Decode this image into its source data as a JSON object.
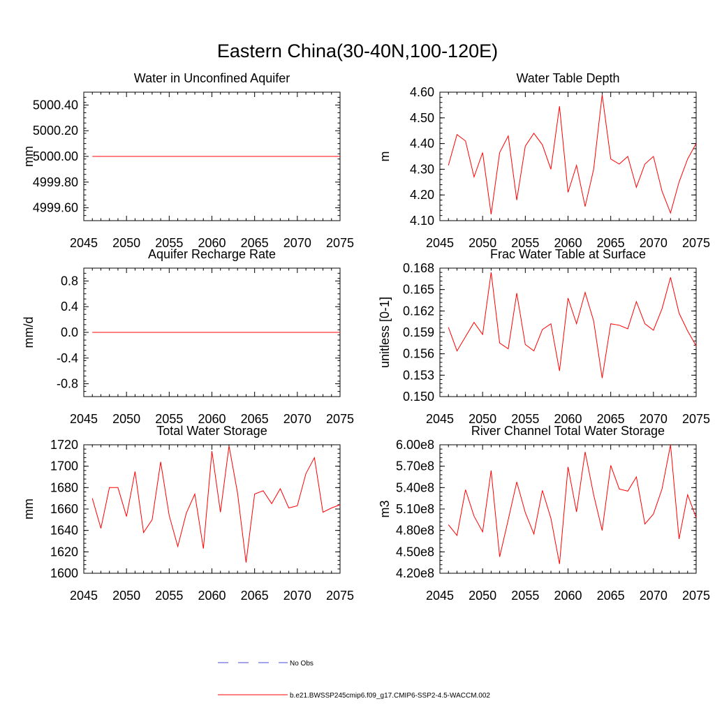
{
  "figure_title": "Eastern China(30-40N,100-120E)",
  "colors": {
    "model": "#ff0000",
    "obs": "#4a4ad8",
    "axis": "#000000"
  },
  "legend": {
    "obs_label": "No Obs",
    "model_label": "b.e21.BWSSP245cmip6.f09_g17.CMIP6-SSP2-4.5-WACCM.002"
  },
  "chart_data": [
    {
      "type": "line",
      "title": "Water in Unconfined Aquifer",
      "ylabel": "mm",
      "xlim": [
        2045,
        2075
      ],
      "ylim": [
        4999.5,
        5000.5
      ],
      "xticks": [
        2045,
        2050,
        2055,
        2060,
        2065,
        2070,
        2075
      ],
      "yticks": [
        4999.6,
        4999.8,
        5000.0,
        5000.2,
        5000.4
      ],
      "ytick_labels": [
        "4999.60",
        "4999.80",
        "5000.00",
        "5000.20",
        "5000.40"
      ],
      "ytick_minor": 0.04,
      "x": [
        2046,
        2075
      ],
      "series": [
        {
          "name": "b.e21.BWSSP245cmip6.f09_g17.CMIP6-SSP2-4.5-WACCM.002",
          "values": [
            5000.0,
            5000.0
          ]
        }
      ]
    },
    {
      "type": "line",
      "title": "Water Table Depth",
      "ylabel": "m",
      "xlim": [
        2045,
        2075
      ],
      "ylim": [
        4.1,
        4.6
      ],
      "xticks": [
        2045,
        2050,
        2055,
        2060,
        2065,
        2070,
        2075
      ],
      "yticks": [
        4.1,
        4.2,
        4.3,
        4.4,
        4.5,
        4.6
      ],
      "ytick_labels": [
        "4.10",
        "4.20",
        "4.30",
        "4.40",
        "4.50",
        "4.60"
      ],
      "ytick_minor": 0.02,
      "x": [
        2046,
        2047,
        2048,
        2049,
        2050,
        2051,
        2052,
        2053,
        2054,
        2055,
        2056,
        2057,
        2058,
        2059,
        2060,
        2061,
        2062,
        2063,
        2064,
        2065,
        2066,
        2067,
        2068,
        2069,
        2070,
        2071,
        2072,
        2073,
        2074,
        2075
      ],
      "series": [
        {
          "name": "b.e21.BWSSP245cmip6.f09_g17.CMIP6-SSP2-4.5-WACCM.002",
          "values": [
            4.315,
            4.435,
            4.41,
            4.27,
            4.365,
            4.125,
            4.365,
            4.43,
            4.18,
            4.39,
            4.44,
            4.395,
            4.3,
            4.545,
            4.21,
            4.315,
            4.155,
            4.3,
            4.59,
            4.34,
            4.32,
            4.35,
            4.23,
            4.32,
            4.35,
            4.215,
            4.13,
            4.25,
            4.34,
            4.4
          ]
        }
      ]
    },
    {
      "type": "line",
      "title": "Aquifer Recharge Rate",
      "ylabel": "mm/d",
      "xlim": [
        2045,
        2075
      ],
      "ylim": [
        -1.0,
        1.0
      ],
      "xticks": [
        2045,
        2050,
        2055,
        2060,
        2065,
        2070,
        2075
      ],
      "yticks": [
        -0.8,
        -0.4,
        0.0,
        0.4,
        0.8
      ],
      "ytick_labels": [
        "-0.8",
        "-0.4",
        "0.0",
        "0.4",
        "0.8"
      ],
      "ytick_minor": 0.08,
      "x": [
        2046,
        2075
      ],
      "series": [
        {
          "name": "b.e21.BWSSP245cmip6.f09_g17.CMIP6-SSP2-4.5-WACCM.002",
          "values": [
            0.0,
            0.0
          ]
        }
      ]
    },
    {
      "type": "line",
      "title": "Frac Water Table at Surface",
      "ylabel": "unitless [0-1]",
      "xlim": [
        2045,
        2075
      ],
      "ylim": [
        0.15,
        0.168
      ],
      "xticks": [
        2045,
        2050,
        2055,
        2060,
        2065,
        2070,
        2075
      ],
      "yticks": [
        0.15,
        0.153,
        0.156,
        0.159,
        0.162,
        0.165,
        0.168
      ],
      "ytick_labels": [
        "0.150",
        "0.153",
        "0.156",
        "0.159",
        "0.162",
        "0.165",
        "0.168"
      ],
      "ytick_minor": 0.0006,
      "x": [
        2046,
        2047,
        2048,
        2049,
        2050,
        2051,
        2052,
        2053,
        2054,
        2055,
        2056,
        2057,
        2058,
        2059,
        2060,
        2061,
        2062,
        2063,
        2064,
        2065,
        2066,
        2067,
        2068,
        2069,
        2070,
        2071,
        2072,
        2073,
        2074,
        2075
      ],
      "series": [
        {
          "name": "b.e21.BWSSP245cmip6.f09_g17.CMIP6-SSP2-4.5-WACCM.002",
          "values": [
            0.1597,
            0.1564,
            0.1584,
            0.1604,
            0.1587,
            0.1674,
            0.1575,
            0.1567,
            0.1645,
            0.1573,
            0.1564,
            0.1594,
            0.1602,
            0.1536,
            0.1638,
            0.1602,
            0.1646,
            0.1606,
            0.1526,
            0.1602,
            0.16,
            0.1595,
            0.1633,
            0.1602,
            0.1593,
            0.1623,
            0.1667,
            0.1617,
            0.1592,
            0.1571
          ]
        }
      ]
    },
    {
      "type": "line",
      "title": "Total Water Storage",
      "ylabel": "mm",
      "xlim": [
        2045,
        2075
      ],
      "ylim": [
        1600,
        1720
      ],
      "xticks": [
        2045,
        2050,
        2055,
        2060,
        2065,
        2070,
        2075
      ],
      "yticks": [
        1600,
        1620,
        1640,
        1660,
        1680,
        1700,
        1720
      ],
      "ytick_labels": [
        "1600",
        "1620",
        "1640",
        "1660",
        "1680",
        "1700",
        "1720"
      ],
      "ytick_minor": 4,
      "x": [
        2046,
        2047,
        2048,
        2049,
        2050,
        2051,
        2052,
        2053,
        2054,
        2055,
        2056,
        2057,
        2058,
        2059,
        2060,
        2061,
        2062,
        2063,
        2064,
        2065,
        2066,
        2067,
        2068,
        2069,
        2070,
        2071,
        2072,
        2073,
        2074,
        2075
      ],
      "series": [
        {
          "name": "b.e21.BWSSP245cmip6.f09_g17.CMIP6-SSP2-4.5-WACCM.002",
          "values": [
            1670,
            1642,
            1680,
            1680,
            1653,
            1695,
            1638,
            1650,
            1704,
            1654,
            1625,
            1656,
            1674,
            1623,
            1714,
            1657,
            1719,
            1675,
            1610,
            1674,
            1677,
            1665,
            1679,
            1661,
            1663,
            1693,
            1708,
            1657,
            1661,
            1664
          ]
        }
      ]
    },
    {
      "type": "line",
      "title": "River Channel Total Water Storage",
      "ylabel": "m3",
      "xlim": [
        2045,
        2075
      ],
      "ylim": [
        420000000,
        600000000
      ],
      "xticks": [
        2045,
        2050,
        2055,
        2060,
        2065,
        2070,
        2075
      ],
      "yticks": [
        420000000,
        450000000,
        480000000,
        510000000,
        540000000,
        570000000,
        600000000
      ],
      "ytick_labels": [
        "4.20e8",
        "4.50e8",
        "4.80e8",
        "5.10e8",
        "5.40e8",
        "5.70e8",
        "6.00e8"
      ],
      "ytick_minor": 6000000,
      "x": [
        2046,
        2047,
        2048,
        2049,
        2050,
        2051,
        2052,
        2053,
        2054,
        2055,
        2056,
        2057,
        2058,
        2059,
        2060,
        2061,
        2062,
        2063,
        2064,
        2065,
        2066,
        2067,
        2068,
        2069,
        2070,
        2071,
        2072,
        2073,
        2074,
        2075
      ],
      "series": [
        {
          "name": "b.e21.BWSSP245cmip6.f09_g17.CMIP6-SSP2-4.5-WACCM.002",
          "values": [
            488000000,
            473000000,
            537000000,
            500000000,
            478000000,
            564000000,
            443000000,
            495000000,
            548000000,
            505000000,
            475000000,
            536000000,
            497000000,
            433000000,
            569000000,
            506000000,
            590000000,
            530000000,
            480000000,
            571000000,
            538000000,
            535000000,
            555000000,
            489000000,
            503000000,
            538000000,
            600000000,
            468000000,
            530000000,
            498000000
          ]
        }
      ]
    }
  ]
}
